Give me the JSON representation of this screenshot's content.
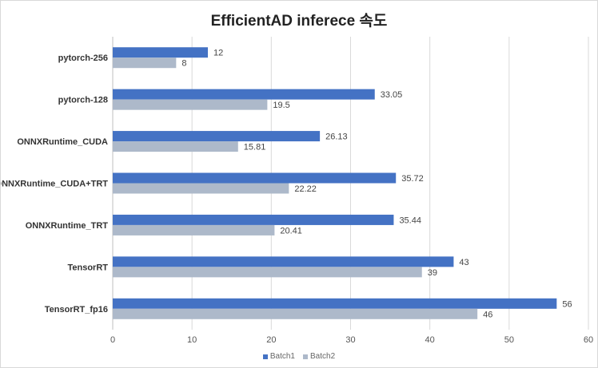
{
  "chart_data": {
    "type": "bar",
    "orientation": "horizontal",
    "title": "EfficientAD inferece 속도",
    "categories": [
      "pytorch-256",
      "pytorch-128",
      "ONNXRuntime_CUDA",
      "ONNXRuntime_CUDA+TRT",
      "ONNXRuntime_TRT",
      "TensorRT",
      "TensorRT_fp16"
    ],
    "series": [
      {
        "name": "Batch1",
        "color": "#4472c4",
        "values": [
          12,
          33.05,
          26.13,
          35.72,
          35.44,
          43,
          56
        ],
        "labels": [
          "12",
          "33.05",
          "26.13",
          "35.72",
          "35.44",
          "43",
          "56"
        ]
      },
      {
        "name": "Batch2",
        "color": "#adb9ca",
        "values": [
          8,
          19.5,
          15.81,
          22.22,
          20.41,
          39,
          46
        ],
        "labels": [
          "8",
          "19.5",
          "15.81",
          "22.22",
          "20.41",
          "39",
          "46"
        ]
      }
    ],
    "xlim": [
      0,
      60
    ],
    "xticks": [
      0,
      10,
      20,
      30,
      40,
      50,
      60
    ],
    "grid": true,
    "legend": "bottom"
  }
}
